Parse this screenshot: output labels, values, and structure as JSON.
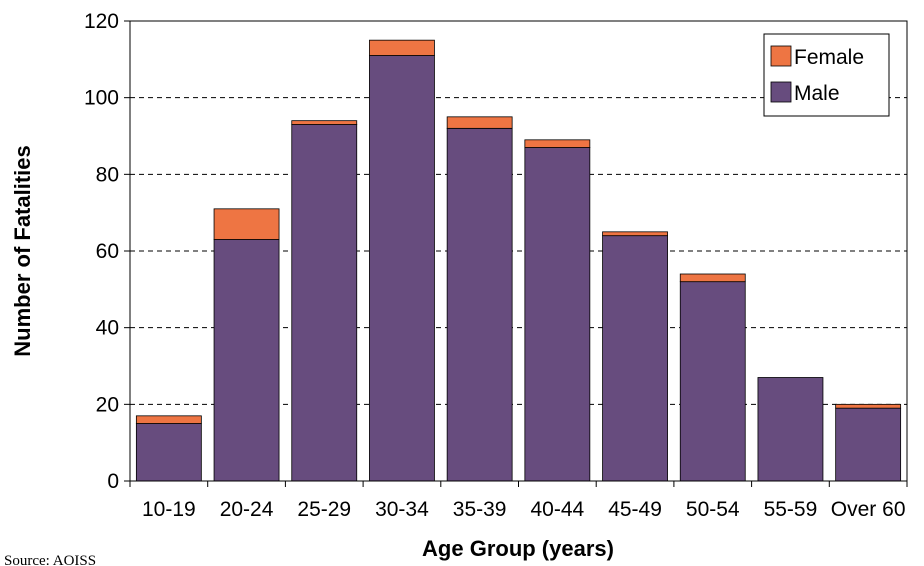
{
  "chart_data": {
    "type": "bar",
    "stacked": true,
    "title": "",
    "xlabel": "Age Group (years)",
    "ylabel": "Number of Fatalities",
    "ylim": [
      0,
      120
    ],
    "yticks": [
      "0",
      "20",
      "40",
      "60",
      "80",
      "100",
      "120"
    ],
    "grid": "horizontal-dashed",
    "legend_position": "top-right",
    "categories": [
      "10-19",
      "20-24",
      "25-29",
      "30-34",
      "35-39",
      "40-44",
      "45-49",
      "50-54",
      "55-59",
      "Over 60"
    ],
    "series": [
      {
        "name": "Male",
        "color": "#674c7e",
        "values": [
          15,
          63,
          93,
          111,
          92,
          87,
          64,
          52,
          27,
          19
        ]
      },
      {
        "name": "Female",
        "color": "#ee7543",
        "values": [
          2,
          8,
          1,
          4,
          3,
          2,
          1,
          2,
          0,
          1
        ]
      }
    ],
    "legend_order": [
      "Female",
      "Male"
    ]
  },
  "source_note": "Source: AOISS"
}
